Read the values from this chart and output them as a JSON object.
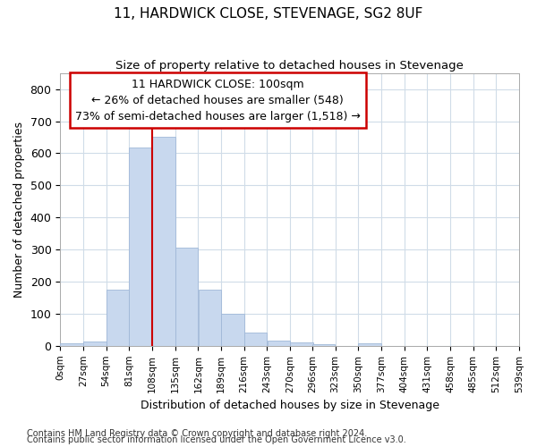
{
  "title": "11, HARDWICK CLOSE, STEVENAGE, SG2 8UF",
  "subtitle": "Size of property relative to detached houses in Stevenage",
  "xlabel": "Distribution of detached houses by size in Stevenage",
  "ylabel": "Number of detached properties",
  "footer_line1": "Contains HM Land Registry data © Crown copyright and database right 2024.",
  "footer_line2": "Contains public sector information licensed under the Open Government Licence v3.0.",
  "bin_edges": [
    0,
    27,
    54,
    81,
    108,
    135,
    162,
    189,
    216,
    243,
    270,
    296,
    323,
    350,
    377,
    404,
    431,
    458,
    485,
    512,
    539
  ],
  "bar_heights": [
    8,
    14,
    175,
    617,
    650,
    305,
    175,
    100,
    40,
    15,
    10,
    5,
    0,
    8,
    0,
    0,
    0,
    0,
    0,
    0
  ],
  "bar_color": "#c8d8ee",
  "bar_edgecolor": "#a0b8d8",
  "grid_color": "#d0dce8",
  "background_color": "#ffffff",
  "ax_background_color": "#ffffff",
  "red_line_x": 108,
  "annotation_line1": "11 HARDWICK CLOSE: 100sqm",
  "annotation_line2": "← 26% of detached houses are smaller (548)",
  "annotation_line3": "73% of semi-detached houses are larger (1,518) →",
  "annotation_box_color": "#ffffff",
  "annotation_box_edgecolor": "#cc0000",
  "ylim": [
    0,
    850
  ],
  "yticks": [
    0,
    100,
    200,
    300,
    400,
    500,
    600,
    700,
    800
  ],
  "tick_labels": [
    "0sqm",
    "27sqm",
    "54sqm",
    "81sqm",
    "108sqm",
    "135sqm",
    "162sqm",
    "189sqm",
    "216sqm",
    "243sqm",
    "270sqm",
    "296sqm",
    "323sqm",
    "350sqm",
    "377sqm",
    "404sqm",
    "431sqm",
    "458sqm",
    "485sqm",
    "512sqm",
    "539sqm"
  ]
}
